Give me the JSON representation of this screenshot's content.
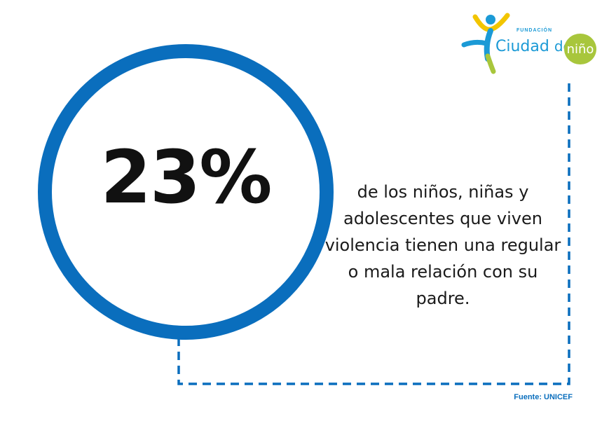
{
  "stat": {
    "value": "23%",
    "text": "de los niños, niñas y adolescentes que viven violencia tienen una regular o mala relación con su padre."
  },
  "source": "Fuente: UNICEF",
  "logo": {
    "caption": "FUNDACIÓN",
    "name_part1": "Ciudad",
    "name_part2": "del",
    "name_badge": "niño",
    "icon": "child-figure-icon"
  },
  "colors": {
    "ring": "#0a6ebd",
    "dashes": "#0a6ebd",
    "logo_blue": "#1b9ad6",
    "logo_green": "#a8c63c",
    "logo_yellow": "#f2c500"
  }
}
